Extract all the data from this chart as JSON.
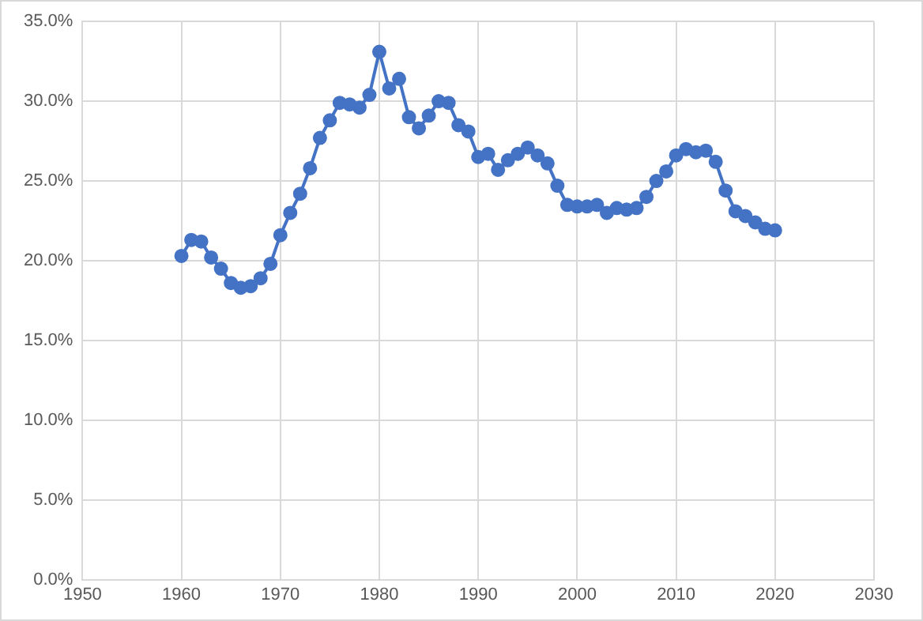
{
  "chart_data": {
    "type": "line",
    "marker": "circle",
    "grid": true,
    "legend": false,
    "x": [
      1960,
      1961,
      1962,
      1963,
      1964,
      1965,
      1966,
      1967,
      1968,
      1969,
      1970,
      1971,
      1972,
      1973,
      1974,
      1975,
      1976,
      1977,
      1978,
      1979,
      1980,
      1981,
      1982,
      1983,
      1984,
      1985,
      1986,
      1987,
      1988,
      1989,
      1990,
      1991,
      1992,
      1993,
      1994,
      1995,
      1996,
      1997,
      1998,
      1999,
      2000,
      2001,
      2002,
      2003,
      2004,
      2005,
      2006,
      2007,
      2008,
      2009,
      2010,
      2011,
      2012,
      2013,
      2014,
      2015,
      2016,
      2017,
      2018,
      2019,
      2020
    ],
    "series": [
      {
        "color": "#4472c4",
        "values": [
          20.3,
          21.3,
          21.2,
          20.2,
          19.5,
          18.6,
          18.3,
          18.4,
          18.9,
          19.8,
          21.6,
          23.0,
          24.2,
          25.8,
          27.7,
          28.8,
          29.9,
          29.8,
          29.6,
          30.4,
          33.1,
          30.8,
          31.4,
          29.0,
          28.3,
          29.1,
          30.0,
          29.9,
          28.5,
          28.1,
          26.5,
          26.7,
          25.7,
          26.3,
          26.7,
          27.1,
          26.6,
          26.1,
          24.7,
          23.5,
          23.4,
          23.4,
          23.5,
          23.0,
          23.3,
          23.2,
          23.3,
          24.0,
          25.0,
          25.6,
          26.6,
          27.0,
          26.8,
          26.9,
          26.2,
          24.4,
          23.1,
          22.8,
          22.4,
          22.0,
          21.9
        ]
      }
    ],
    "xlim": [
      1950,
      2030
    ],
    "xticks": [
      1950,
      1960,
      1970,
      1980,
      1990,
      2000,
      2010,
      2020,
      2030
    ],
    "ylim": [
      0,
      35
    ],
    "yticks": [
      {
        "value": 0,
        "label": "0.0%"
      },
      {
        "value": 5,
        "label": "5.0%"
      },
      {
        "value": 10,
        "label": "10.0%"
      },
      {
        "value": 15,
        "label": "15.0%"
      },
      {
        "value": 20,
        "label": "20.0%"
      },
      {
        "value": 25,
        "label": "25.0%"
      },
      {
        "value": 30,
        "label": "30.0%"
      },
      {
        "value": 35,
        "label": "35.0%"
      }
    ]
  }
}
